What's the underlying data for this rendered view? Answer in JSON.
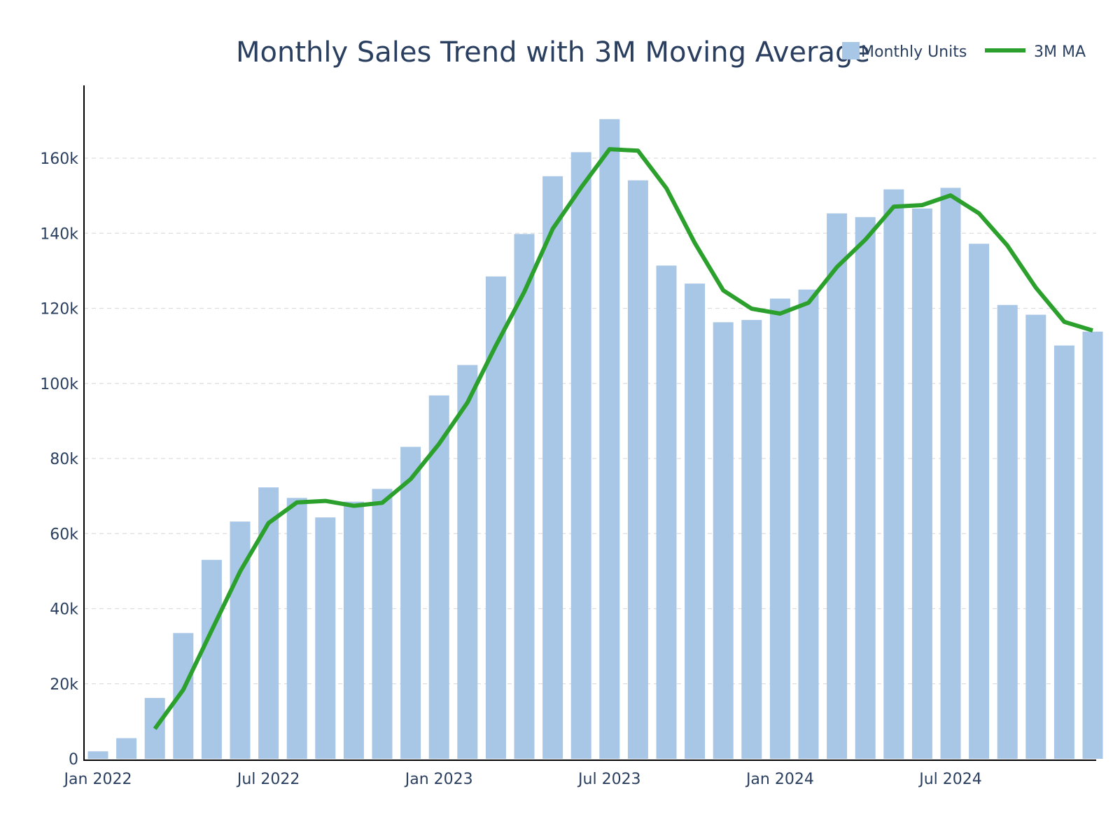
{
  "chart_data": {
    "type": "bar",
    "title": "Monthly Sales Trend with 3M Moving Average",
    "xlabel": "",
    "ylabel": "",
    "ylim": [
      0,
      170000
    ],
    "grid": "y-dashed",
    "legend_position": "top-right",
    "x": [
      "2022-01",
      "2022-02",
      "2022-03",
      "2022-04",
      "2022-05",
      "2022-06",
      "2022-07",
      "2022-08",
      "2022-09",
      "2022-10",
      "2022-11",
      "2022-12",
      "2023-01",
      "2023-02",
      "2023-03",
      "2023-04",
      "2023-05",
      "2023-06",
      "2023-07",
      "2023-08",
      "2023-09",
      "2023-10",
      "2023-11",
      "2023-12",
      "2024-01",
      "2024-02",
      "2024-03",
      "2024-04",
      "2024-05",
      "2024-06",
      "2024-07",
      "2024-08",
      "2024-09",
      "2024-10",
      "2024-11",
      "2024-12"
    ],
    "x_tick_labels": [
      "Jan 2022",
      "Jul 2022",
      "Jan 2023",
      "Jul 2023",
      "Jan 2024",
      "Jul 2024"
    ],
    "y_tick_values": [
      0,
      20000,
      40000,
      60000,
      80000,
      100000,
      120000,
      140000,
      160000
    ],
    "y_tick_labels": [
      "0",
      "20k",
      "40k",
      "60k",
      "80k",
      "100k",
      "120k",
      "140k",
      "160k"
    ],
    "series": [
      {
        "name": "Monthly Units",
        "type": "bar",
        "color": "#a8c6e6",
        "values": [
          2000,
          5500,
          16200,
          33500,
          53000,
          63200,
          72300,
          69500,
          64300,
          68500,
          71900,
          83100,
          96800,
          104900,
          128500,
          139800,
          155200,
          161600,
          170400,
          154100,
          131400,
          126600,
          116300,
          116900,
          122600,
          125000,
          145300,
          144300,
          151700,
          146600,
          152100,
          137200,
          120900,
          118300,
          110100,
          113800
        ]
      },
      {
        "name": "3M MA",
        "type": "line",
        "color": "#2ca02c",
        "values": [
          null,
          null,
          8000,
          18400,
          34200,
          49900,
          62800,
          68300,
          68700,
          67400,
          68200,
          74500,
          83900,
          94900,
          110100,
          124400,
          141200,
          152200,
          162400,
          162000,
          152000,
          137400,
          124800,
          119900,
          118600,
          121500,
          131000,
          138300,
          147100,
          147500,
          150100,
          145300,
          136700,
          125500,
          116400,
          114100
        ]
      }
    ]
  }
}
